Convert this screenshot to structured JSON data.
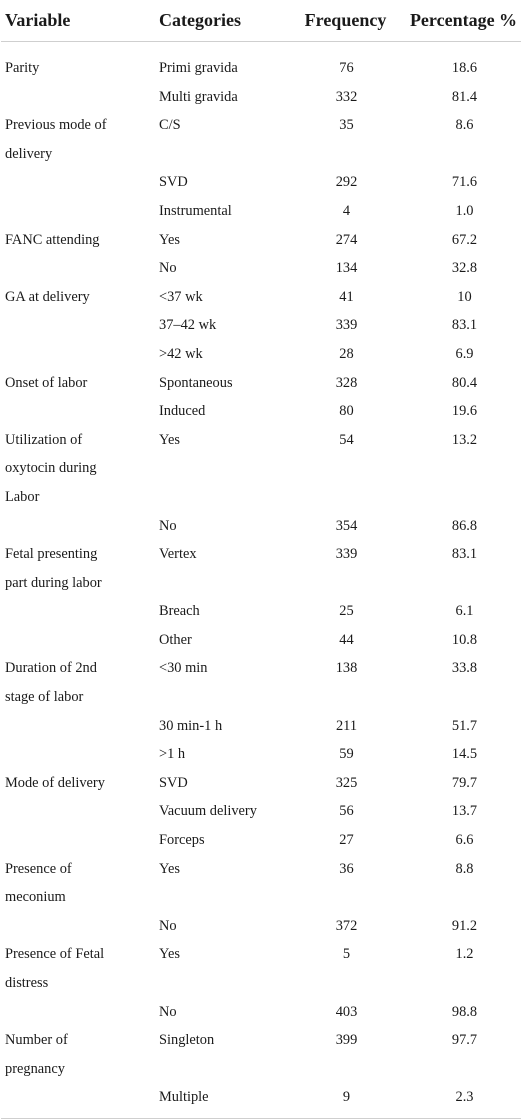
{
  "headers": {
    "variable": "Variable",
    "categories": "Categories",
    "frequency": "Frequency",
    "percentage": "Percentage %"
  },
  "groups": [
    {
      "variable": "Parity",
      "rows": [
        {
          "category": "Primi gravida",
          "frequency": "76",
          "percentage": "18.6"
        },
        {
          "category": "Multi gravida",
          "frequency": "332",
          "percentage": "81.4"
        }
      ]
    },
    {
      "variable": "Previous mode of delivery",
      "rows": [
        {
          "category": "C/S",
          "frequency": "35",
          "percentage": "8.6"
        },
        {
          "category": "SVD",
          "frequency": "292",
          "percentage": "71.6"
        },
        {
          "category": "Instrumental",
          "frequency": "4",
          "percentage": "1.0"
        }
      ]
    },
    {
      "variable": "FANC attending",
      "rows": [
        {
          "category": "Yes",
          "frequency": "274",
          "percentage": "67.2"
        },
        {
          "category": "No",
          "frequency": "134",
          "percentage": "32.8"
        }
      ]
    },
    {
      "variable": "GA at delivery",
      "rows": [
        {
          "category": "<37 wk",
          "frequency": "41",
          "percentage": "10"
        },
        {
          "category": "37–42 wk",
          "frequency": "339",
          "percentage": "83.1"
        },
        {
          "category": ">42 wk",
          "frequency": "28",
          "percentage": "6.9"
        }
      ]
    },
    {
      "variable": "Onset of labor",
      "rows": [
        {
          "category": "Spontaneous",
          "frequency": "328",
          "percentage": "80.4"
        },
        {
          "category": "Induced",
          "frequency": "80",
          "percentage": "19.6"
        }
      ]
    },
    {
      "variable": "Utilization of oxytocin during Labor",
      "rows": [
        {
          "category": "Yes",
          "frequency": "54",
          "percentage": "13.2"
        },
        {
          "category": "No",
          "frequency": "354",
          "percentage": "86.8"
        }
      ]
    },
    {
      "variable": "Fetal presenting part during labor",
      "rows": [
        {
          "category": "Vertex",
          "frequency": "339",
          "percentage": "83.1"
        },
        {
          "category": "Breach",
          "frequency": "25",
          "percentage": "6.1"
        },
        {
          "category": "Other",
          "frequency": "44",
          "percentage": "10.8"
        }
      ]
    },
    {
      "variable": "Duration of 2nd stage of labor",
      "rows": [
        {
          "category": "<30 min",
          "frequency": "138",
          "percentage": "33.8"
        },
        {
          "category": "30 min-1 h",
          "frequency": "211",
          "percentage": "51.7"
        },
        {
          "category": ">1 h",
          "frequency": "59",
          "percentage": "14.5"
        }
      ]
    },
    {
      "variable": "Mode of delivery",
      "rows": [
        {
          "category": "SVD",
          "frequency": "325",
          "percentage": "79.7"
        },
        {
          "category": "Vacuum delivery",
          "frequency": "56",
          "percentage": "13.7"
        },
        {
          "category": "Forceps",
          "frequency": "27",
          "percentage": "6.6"
        }
      ]
    },
    {
      "variable": "Presence of meconium",
      "rows": [
        {
          "category": "Yes",
          "frequency": "36",
          "percentage": "8.8"
        },
        {
          "category": "No",
          "frequency": "372",
          "percentage": "91.2"
        }
      ]
    },
    {
      "variable": "Presence of Fetal distress",
      "rows": [
        {
          "category": "Yes",
          "frequency": "5",
          "percentage": "1.2"
        },
        {
          "category": "No",
          "frequency": "403",
          "percentage": "98.8"
        }
      ]
    },
    {
      "variable": "Number of pregnancy",
      "rows": [
        {
          "category": "Singleton",
          "frequency": "399",
          "percentage": "97.7"
        },
        {
          "category": "Multiple",
          "frequency": "9",
          "percentage": "2.3"
        }
      ]
    }
  ]
}
